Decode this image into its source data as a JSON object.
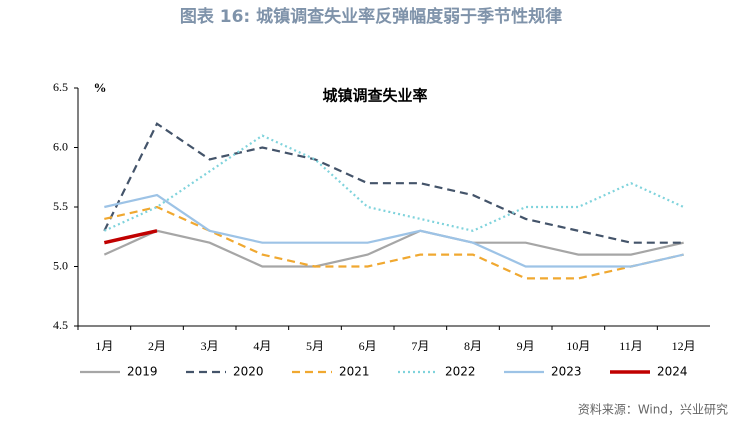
{
  "chart_data": {
    "type": "line",
    "title": "图表 16: 城镇调查失业率反弹幅度弱于季节性规律",
    "subtitle": "城镇调查失业率",
    "y_label": "%",
    "source": "资料来源：Wind，兴业研究",
    "categories": [
      "1月",
      "2月",
      "3月",
      "4月",
      "5月",
      "6月",
      "7月",
      "8月",
      "9月",
      "10月",
      "11月",
      "12月"
    ],
    "series": [
      {
        "name": "2019",
        "color": "#a6a6a6",
        "dash": "solid",
        "values": [
          5.1,
          5.3,
          5.2,
          5.0,
          5.0,
          5.1,
          5.3,
          5.2,
          5.2,
          5.1,
          5.1,
          5.2
        ]
      },
      {
        "name": "2020",
        "color": "#44546a",
        "dash": "dashed",
        "values": [
          5.3,
          6.2,
          5.9,
          6.0,
          5.9,
          5.7,
          5.7,
          5.6,
          5.4,
          5.3,
          5.2,
          5.2
        ]
      },
      {
        "name": "2021",
        "color": "#f0a830",
        "dash": "dashed",
        "values": [
          5.4,
          5.5,
          5.3,
          5.1,
          5.0,
          5.0,
          5.1,
          5.1,
          4.9,
          4.9,
          5.0,
          5.1
        ]
      },
      {
        "name": "2022",
        "color": "#7fd3dc",
        "dash": "dotted",
        "values": [
          5.3,
          5.5,
          5.8,
          6.1,
          5.9,
          5.5,
          5.4,
          5.3,
          5.5,
          5.5,
          5.7,
          5.5
        ]
      },
      {
        "name": "2023",
        "color": "#9dc3e6",
        "dash": "solid",
        "values": [
          5.5,
          5.6,
          5.3,
          5.2,
          5.2,
          5.2,
          5.3,
          5.2,
          5.0,
          5.0,
          5.0,
          5.1
        ]
      },
      {
        "name": "2024",
        "color": "#c00000",
        "dash": "solid",
        "values": [
          5.2,
          5.3,
          null,
          null,
          null,
          null,
          null,
          null,
          null,
          null,
          null,
          null
        ]
      }
    ],
    "ylim": [
      4.5,
      6.5
    ],
    "yticks": [
      4.5,
      {
        "value": 5,
        "label": "5.0"
      },
      5.5,
      {
        "value": 6,
        "label": "6.0"
      },
      6.5
    ],
    "grid": false,
    "legend": "bottom"
  }
}
